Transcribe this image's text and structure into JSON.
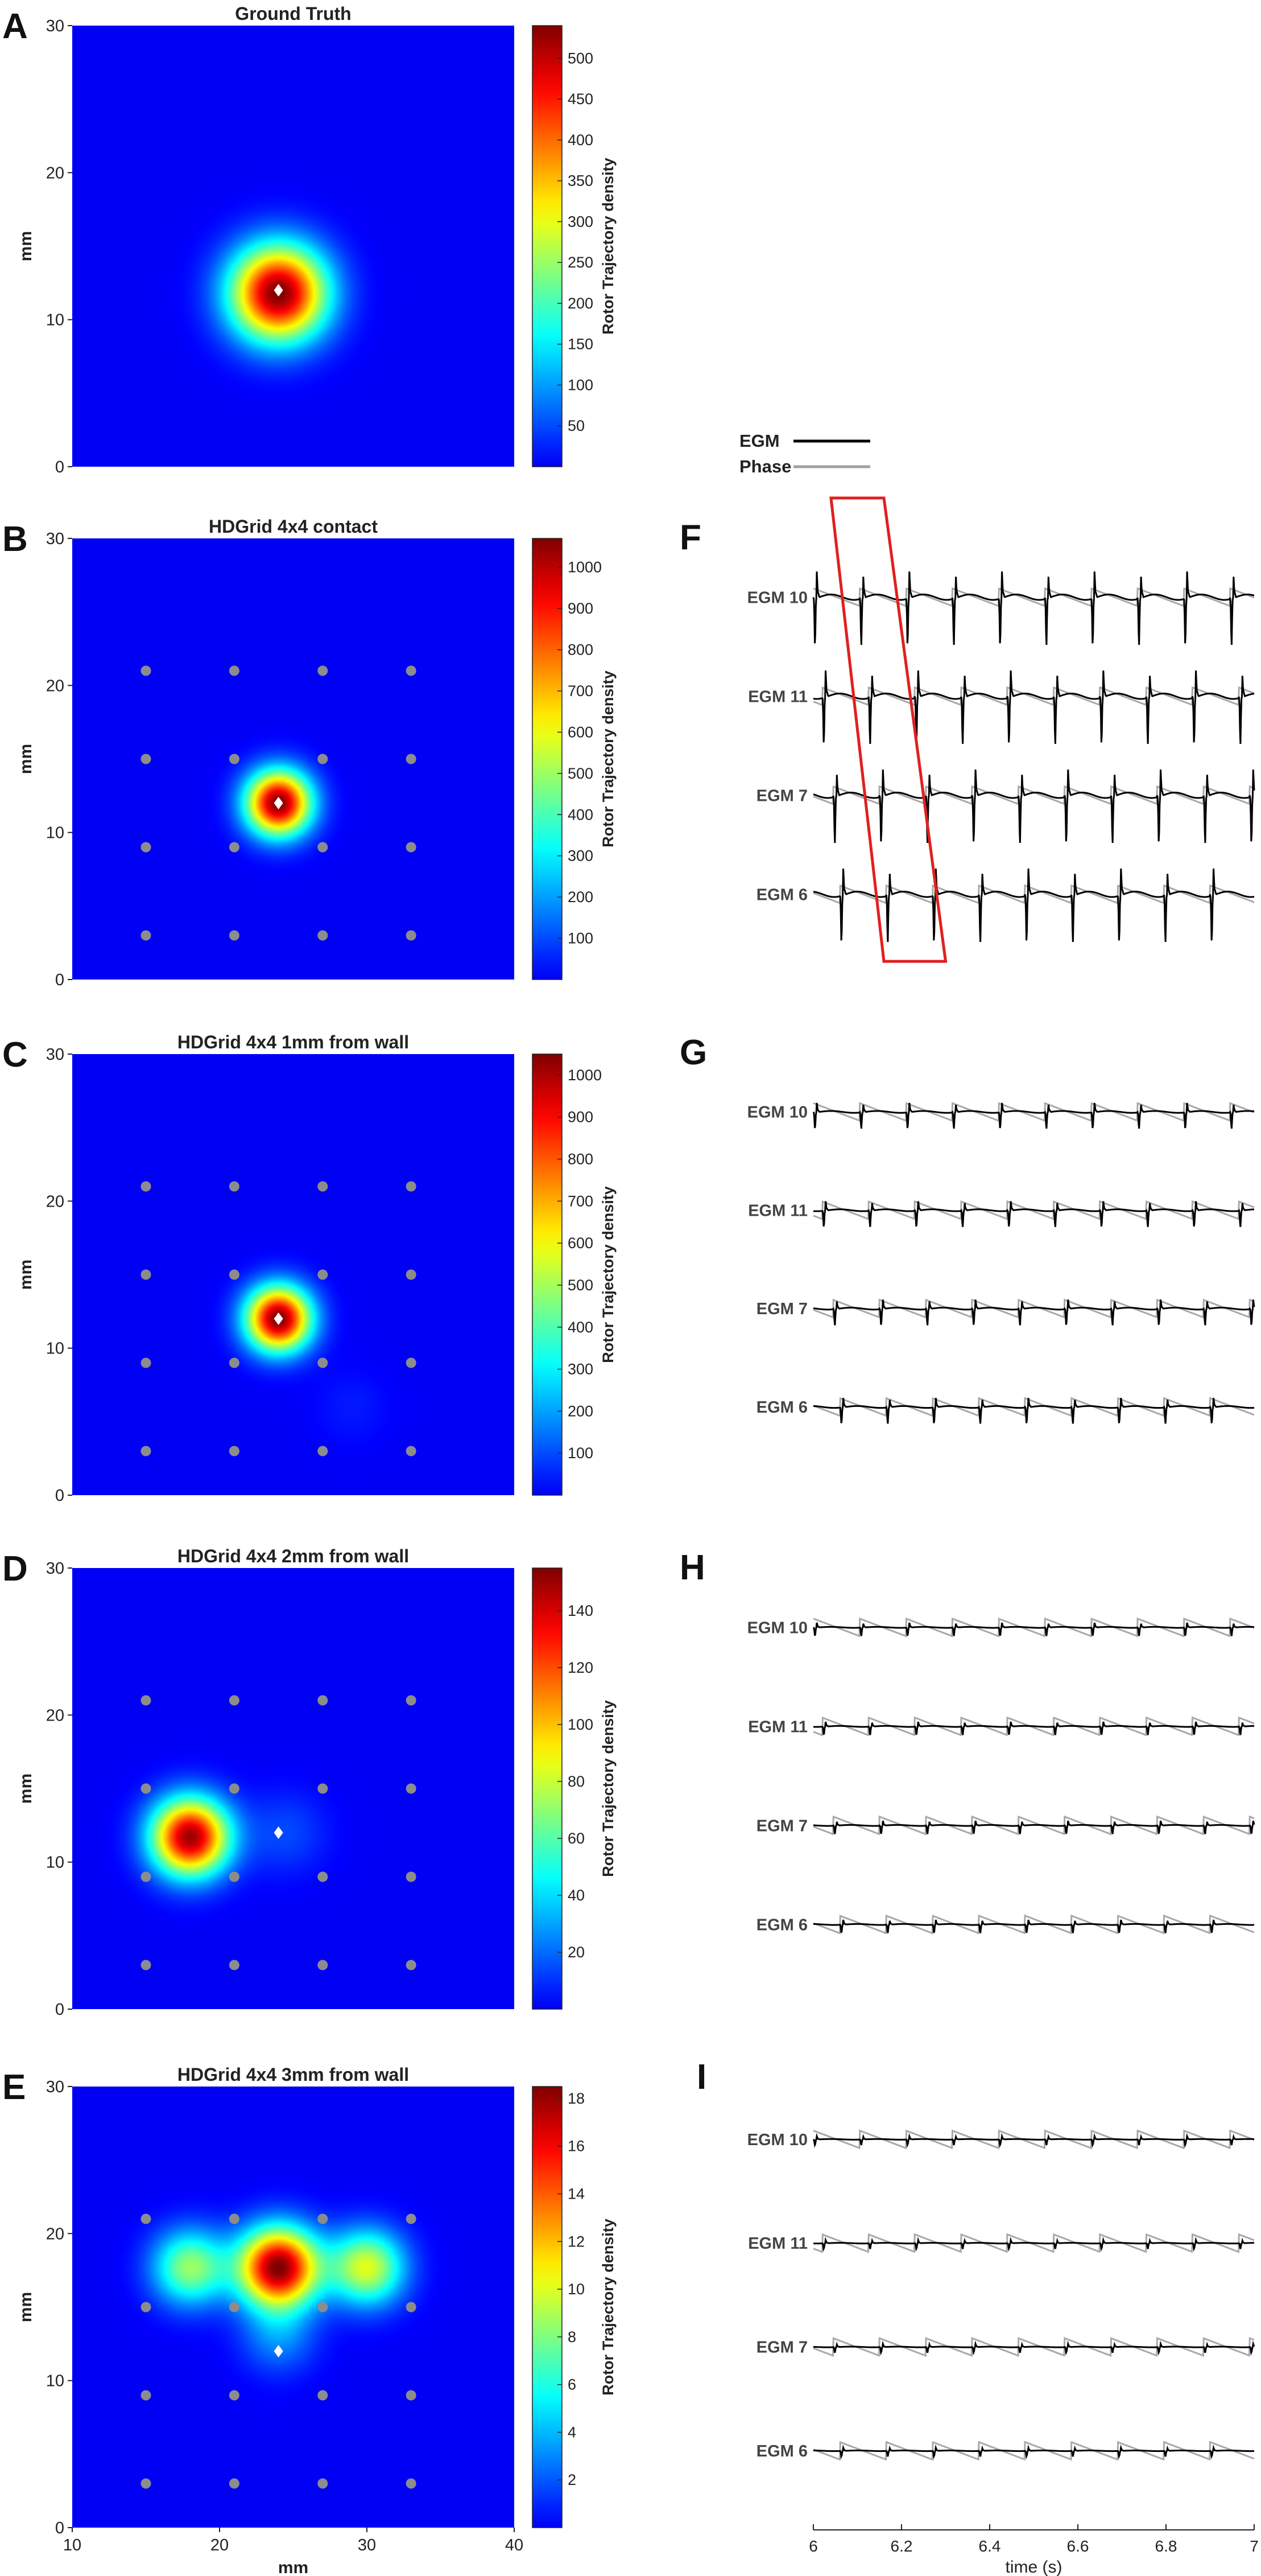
{
  "chart_data": [
    {
      "type": "heatmap",
      "panel_letter": "A",
      "title": "Ground Truth",
      "xlabel": "",
      "ylabel": "mm",
      "xlim": [
        10,
        40
      ],
      "ylim": [
        0,
        30
      ],
      "x_ticks": [],
      "y_ticks": [
        0,
        10,
        20,
        30
      ],
      "colorbar": {
        "label": "Rotor Trajectory density",
        "max": 540,
        "ticks": [
          50,
          100,
          150,
          200,
          250,
          300,
          350,
          400,
          450,
          500
        ]
      },
      "colormap": "jet",
      "electrodes": [],
      "true_rotor": [
        24,
        12
      ],
      "peaks": [
        {
          "x": 24,
          "y": 11.8,
          "value": 540,
          "sigma_mm": 2.3
        }
      ]
    },
    {
      "type": "heatmap",
      "panel_letter": "B",
      "title": "HDGrid 4x4 contact",
      "xlabel": "",
      "ylabel": "mm",
      "xlim": [
        10,
        40
      ],
      "ylim": [
        0,
        30
      ],
      "x_ticks": [],
      "y_ticks": [
        0,
        10,
        20,
        30
      ],
      "colorbar": {
        "label": "Rotor Trajectory density",
        "max": 1070,
        "ticks": [
          100,
          200,
          300,
          400,
          500,
          600,
          700,
          800,
          900,
          1000
        ]
      },
      "colormap": "jet",
      "electrodes": [
        [
          15,
          3
        ],
        [
          21,
          3
        ],
        [
          27,
          3
        ],
        [
          33,
          3
        ],
        [
          15,
          9
        ],
        [
          21,
          9
        ],
        [
          27,
          9
        ],
        [
          33,
          9
        ],
        [
          15,
          15
        ],
        [
          21,
          15
        ],
        [
          27,
          15
        ],
        [
          33,
          15
        ],
        [
          15,
          21
        ],
        [
          21,
          21
        ],
        [
          27,
          21
        ],
        [
          33,
          21
        ]
      ],
      "true_rotor": [
        24,
        12
      ],
      "peaks": [
        {
          "x": 24,
          "y": 12,
          "value": 1070,
          "sigma_mm": 1.55
        }
      ]
    },
    {
      "type": "heatmap",
      "panel_letter": "C",
      "title": "HDGrid 4x4 1mm from wall",
      "xlabel": "",
      "ylabel": "mm",
      "xlim": [
        10,
        40
      ],
      "ylim": [
        0,
        30
      ],
      "x_ticks": [],
      "y_ticks": [
        0,
        10,
        20,
        30
      ],
      "colorbar": {
        "label": "Rotor Trajectory density",
        "max": 1050,
        "ticks": [
          100,
          200,
          300,
          400,
          500,
          600,
          700,
          800,
          900,
          1000
        ]
      },
      "colormap": "jet",
      "electrodes": [
        [
          15,
          3
        ],
        [
          21,
          3
        ],
        [
          27,
          3
        ],
        [
          33,
          3
        ],
        [
          15,
          9
        ],
        [
          21,
          9
        ],
        [
          27,
          9
        ],
        [
          33,
          9
        ],
        [
          15,
          15
        ],
        [
          21,
          15
        ],
        [
          27,
          15
        ],
        [
          33,
          15
        ],
        [
          15,
          21
        ],
        [
          21,
          21
        ],
        [
          27,
          21
        ],
        [
          33,
          21
        ]
      ],
      "true_rotor": [
        24,
        12
      ],
      "peaks": [
        {
          "x": 24,
          "y": 12,
          "value": 1050,
          "sigma_mm": 1.55
        },
        {
          "x": 29,
          "y": 6,
          "value": 40,
          "sigma_mm": 1.8
        }
      ]
    },
    {
      "type": "heatmap",
      "panel_letter": "D",
      "title": "HDGrid 4x4 2mm from wall",
      "xlabel": "",
      "ylabel": "mm",
      "xlim": [
        10,
        40
      ],
      "ylim": [
        0,
        30
      ],
      "x_ticks": [],
      "y_ticks": [
        0,
        10,
        20,
        30
      ],
      "colorbar": {
        "label": "Rotor Trajectory density",
        "max": 155,
        "ticks": [
          20,
          40,
          60,
          80,
          100,
          120,
          140
        ]
      },
      "colormap": "jet",
      "electrodes": [
        [
          15,
          3
        ],
        [
          21,
          3
        ],
        [
          27,
          3
        ],
        [
          33,
          3
        ],
        [
          15,
          9
        ],
        [
          21,
          9
        ],
        [
          27,
          9
        ],
        [
          33,
          9
        ],
        [
          15,
          15
        ],
        [
          21,
          15
        ],
        [
          27,
          15
        ],
        [
          33,
          15
        ],
        [
          15,
          21
        ],
        [
          21,
          21
        ],
        [
          27,
          21
        ],
        [
          33,
          21
        ]
      ],
      "true_rotor": [
        24,
        12
      ],
      "peaks": [
        {
          "x": 18,
          "y": 11.7,
          "value": 150,
          "sigma_mm": 1.85
        },
        {
          "x": 24.5,
          "y": 12,
          "value": 14,
          "sigma_mm": 2.0
        }
      ]
    },
    {
      "type": "heatmap",
      "panel_letter": "E",
      "title": "HDGrid 4x4 3mm from wall",
      "xlabel": "mm",
      "ylabel": "mm",
      "xlim": [
        10,
        40
      ],
      "ylim": [
        0,
        30
      ],
      "x_ticks": [
        10,
        20,
        30,
        40
      ],
      "y_ticks": [
        0,
        10,
        20,
        30
      ],
      "colorbar": {
        "label": "Rotor Trajectory density",
        "max": 18.5,
        "ticks": [
          2,
          4,
          6,
          8,
          10,
          12,
          14,
          16,
          18
        ]
      },
      "colormap": "jet",
      "electrodes": [
        [
          15,
          3
        ],
        [
          21,
          3
        ],
        [
          27,
          3
        ],
        [
          33,
          3
        ],
        [
          15,
          9
        ],
        [
          21,
          9
        ],
        [
          27,
          9
        ],
        [
          33,
          9
        ],
        [
          15,
          15
        ],
        [
          21,
          15
        ],
        [
          27,
          15
        ],
        [
          33,
          15
        ],
        [
          15,
          21
        ],
        [
          21,
          21
        ],
        [
          27,
          21
        ],
        [
          33,
          21
        ]
      ],
      "true_rotor": [
        24,
        12
      ],
      "peaks": [
        {
          "x": 24,
          "y": 17.7,
          "value": 18.5,
          "sigma_mm": 1.9
        },
        {
          "x": 18,
          "y": 17.7,
          "value": 8.5,
          "sigma_mm": 1.8
        },
        {
          "x": 30,
          "y": 17.7,
          "value": 10,
          "sigma_mm": 1.8
        },
        {
          "x": 24,
          "y": 13,
          "value": 3,
          "sigma_mm": 1.8
        }
      ]
    },
    {
      "type": "line",
      "panel_letter": "F",
      "legend": [
        {
          "name": "EGM",
          "color": "#000000"
        },
        {
          "name": "Phase",
          "color": "#a0a0a0"
        }
      ],
      "channels": [
        "EGM 10",
        "EGM 11",
        "EGM 7",
        "EGM 6"
      ],
      "offsets_s": [
        0.0,
        0.02,
        0.045,
        0.06
      ],
      "cycle_length_s": 0.105,
      "egm_amplitude": 1.0,
      "xlim": [
        6,
        7
      ],
      "highlight_box": {
        "color": "#e02020",
        "top_x_range": [
          6.04,
          6.16
        ],
        "bottom_x_range": [
          6.16,
          6.3
        ]
      }
    },
    {
      "type": "line",
      "panel_letter": "G",
      "channels": [
        "EGM 10",
        "EGM 11",
        "EGM 7",
        "EGM 6"
      ],
      "offsets_s": [
        0.0,
        0.02,
        0.045,
        0.06
      ],
      "cycle_length_s": 0.105,
      "egm_amplitude": 0.35,
      "xlim": [
        6,
        7
      ]
    },
    {
      "type": "line",
      "panel_letter": "H",
      "channels": [
        "EGM 10",
        "EGM 11",
        "EGM 7",
        "EGM 6"
      ],
      "offsets_s": [
        0.0,
        0.02,
        0.045,
        0.06
      ],
      "cycle_length_s": 0.105,
      "egm_amplitude": 0.18,
      "xlim": [
        6,
        7
      ]
    },
    {
      "type": "line",
      "panel_letter": "I",
      "channels": [
        "EGM 10",
        "EGM 11",
        "EGM 7",
        "EGM 6"
      ],
      "offsets_s": [
        0.0,
        0.02,
        0.045,
        0.06
      ],
      "cycle_length_s": 0.105,
      "egm_amplitude": 0.12,
      "xlim": [
        6,
        7
      ],
      "xlabel": "time (s)",
      "x_ticks": [
        6,
        6.2,
        6.4,
        6.6,
        6.8,
        7
      ]
    }
  ]
}
